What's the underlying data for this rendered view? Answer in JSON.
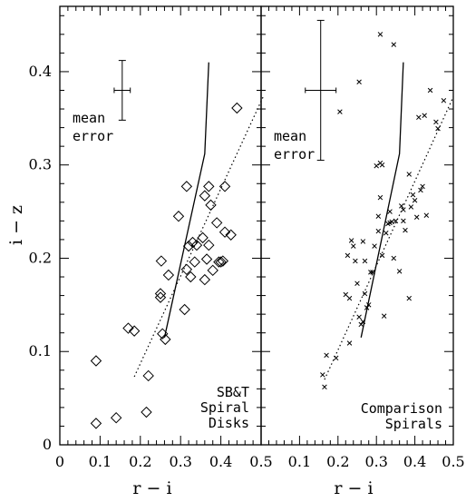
{
  "chart_data": [
    {
      "type": "scatter",
      "panel": "left",
      "xlabel": "r − i",
      "ylabel": "i − z",
      "xlim": [
        0,
        0.5
      ],
      "ylim": [
        0,
        0.47
      ],
      "x_ticks": [
        0,
        0.1,
        0.2,
        0.3,
        0.4,
        0.5
      ],
      "x_tick_labels": [
        "0",
        "0.1",
        "0.2",
        "0.3",
        "0.4",
        "0.5"
      ],
      "y_ticks": [
        0,
        0.1,
        0.2,
        0.3,
        0.4
      ],
      "y_tick_labels": [
        "0",
        "0.1",
        "0.2",
        "0.3",
        "0.4"
      ],
      "marker": "diamond",
      "annotation_lines": [
        "SB&T",
        "Spiral",
        "Disks"
      ],
      "error_label_lines": [
        "mean",
        "error"
      ],
      "mean_error": {
        "x": 0.155,
        "y": 0.38,
        "xerr": 0.02,
        "yerr": 0.032
      },
      "points": [
        [
          0.09,
          0.09
        ],
        [
          0.09,
          0.023
        ],
        [
          0.14,
          0.029
        ],
        [
          0.17,
          0.125
        ],
        [
          0.185,
          0.122
        ],
        [
          0.215,
          0.035
        ],
        [
          0.22,
          0.074
        ],
        [
          0.25,
          0.158
        ],
        [
          0.25,
          0.162
        ],
        [
          0.252,
          0.197
        ],
        [
          0.255,
          0.119
        ],
        [
          0.262,
          0.113
        ],
        [
          0.27,
          0.182
        ],
        [
          0.295,
          0.245
        ],
        [
          0.31,
          0.145
        ],
        [
          0.315,
          0.188
        ],
        [
          0.315,
          0.277
        ],
        [
          0.32,
          0.213
        ],
        [
          0.325,
          0.18
        ],
        [
          0.33,
          0.217
        ],
        [
          0.335,
          0.196
        ],
        [
          0.34,
          0.214
        ],
        [
          0.355,
          0.222
        ],
        [
          0.36,
          0.177
        ],
        [
          0.36,
          0.267
        ],
        [
          0.365,
          0.199
        ],
        [
          0.37,
          0.214
        ],
        [
          0.37,
          0.277
        ],
        [
          0.375,
          0.257
        ],
        [
          0.38,
          0.187
        ],
        [
          0.39,
          0.238
        ],
        [
          0.395,
          0.196
        ],
        [
          0.4,
          0.196
        ],
        [
          0.405,
          0.197
        ],
        [
          0.41,
          0.228
        ],
        [
          0.41,
          0.277
        ],
        [
          0.425,
          0.225
        ],
        [
          0.44,
          0.361
        ]
      ],
      "model_track": [
        [
          0.26,
          0.115
        ],
        [
          0.36,
          0.312
        ],
        [
          0.37,
          0.41
        ]
      ],
      "fit_line": [
        [
          0.185,
          0.073
        ],
        [
          0.505,
          0.373
        ]
      ]
    },
    {
      "type": "scatter",
      "panel": "right",
      "xlabel": "r − i",
      "ylabel": "",
      "xlim": [
        0,
        0.5
      ],
      "ylim": [
        0,
        0.47
      ],
      "x_ticks": [
        0,
        0.1,
        0.2,
        0.3,
        0.4,
        0.5
      ],
      "x_tick_labels": [
        "",
        "0.1",
        "0.2",
        "0.3",
        "0.4",
        "0.5"
      ],
      "y_ticks": [
        0,
        0.1,
        0.2,
        0.3,
        0.4
      ],
      "marker": "cross",
      "annotation_lines": [
        "Comparison",
        "Spirals"
      ],
      "error_label_lines": [
        "mean",
        "error"
      ],
      "mean_error": {
        "x": 0.155,
        "y": 0.38,
        "xerr": 0.04,
        "yerr": 0.075
      },
      "points": [
        [
          0.16,
          0.075
        ],
        [
          0.165,
          0.062
        ],
        [
          0.17,
          0.096
        ],
        [
          0.195,
          0.093
        ],
        [
          0.205,
          0.357
        ],
        [
          0.22,
          0.161
        ],
        [
          0.225,
          0.203
        ],
        [
          0.23,
          0.109
        ],
        [
          0.23,
          0.157
        ],
        [
          0.235,
          0.219
        ],
        [
          0.24,
          0.213
        ],
        [
          0.245,
          0.197
        ],
        [
          0.25,
          0.173
        ],
        [
          0.255,
          0.137
        ],
        [
          0.26,
          0.129
        ],
        [
          0.265,
          0.132
        ],
        [
          0.265,
          0.218
        ],
        [
          0.27,
          0.162
        ],
        [
          0.27,
          0.197
        ],
        [
          0.275,
          0.147
        ],
        [
          0.28,
          0.15
        ],
        [
          0.285,
          0.185
        ],
        [
          0.29,
          0.185
        ],
        [
          0.295,
          0.213
        ],
        [
          0.3,
          0.299
        ],
        [
          0.305,
          0.229
        ],
        [
          0.31,
          0.265
        ],
        [
          0.31,
          0.302
        ],
        [
          0.315,
          0.203
        ],
        [
          0.315,
          0.3
        ],
        [
          0.32,
          0.138
        ],
        [
          0.325,
          0.227
        ],
        [
          0.33,
          0.237
        ],
        [
          0.335,
          0.238
        ],
        [
          0.34,
          0.239
        ],
        [
          0.345,
          0.2
        ],
        [
          0.35,
          0.24
        ],
        [
          0.36,
          0.186
        ],
        [
          0.365,
          0.256
        ],
        [
          0.37,
          0.24
        ],
        [
          0.37,
          0.252
        ],
        [
          0.375,
          0.23
        ],
        [
          0.385,
          0.157
        ],
        [
          0.385,
          0.29
        ],
        [
          0.39,
          0.255
        ],
        [
          0.395,
          0.268
        ],
        [
          0.4,
          0.262
        ],
        [
          0.405,
          0.244
        ],
        [
          0.41,
          0.351
        ],
        [
          0.415,
          0.273
        ],
        [
          0.42,
          0.277
        ],
        [
          0.425,
          0.353
        ],
        [
          0.43,
          0.246
        ],
        [
          0.44,
          0.38
        ],
        [
          0.455,
          0.346
        ],
        [
          0.46,
          0.339
        ],
        [
          0.475,
          0.369
        ],
        [
          0.31,
          0.44
        ],
        [
          0.345,
          0.429
        ],
        [
          0.255,
          0.389
        ],
        [
          0.335,
          0.25
        ],
        [
          0.305,
          0.245
        ]
      ],
      "model_track": [
        [
          0.26,
          0.115
        ],
        [
          0.36,
          0.312
        ],
        [
          0.37,
          0.41
        ]
      ],
      "fit_line": [
        [
          0.165,
          0.07
        ],
        [
          0.5,
          0.373
        ]
      ]
    }
  ]
}
